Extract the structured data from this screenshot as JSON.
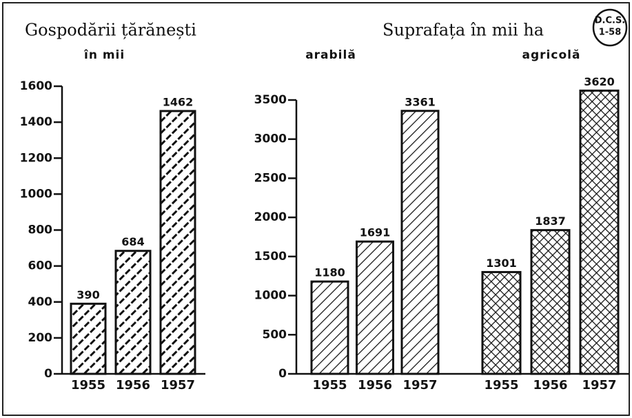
{
  "badge": [
    "D.C.S.",
    "1-58"
  ],
  "chart_data": [
    {
      "type": "bar",
      "title": "Gospodării țărănești",
      "subtitle": "în mii",
      "categories": [
        "1955",
        "1956",
        "1957"
      ],
      "values": [
        390,
        684,
        1462
      ],
      "color": "#111",
      "pattern": "dashed-hatch",
      "ylim": [
        0,
        1600
      ],
      "yticks": [
        0,
        200,
        400,
        600,
        800,
        1000,
        1200,
        1400,
        1600
      ]
    },
    {
      "type": "grouped-bar",
      "title": "Suprafața în mii ha",
      "categories": [
        "1955",
        "1956",
        "1957"
      ],
      "series": [
        {
          "name": "arabilă",
          "color": "#111",
          "pattern": "hatch",
          "values": [
            1180,
            1691,
            3361
          ]
        },
        {
          "name": "agricolă",
          "color": "#111",
          "pattern": "crosshatch",
          "values": [
            1301,
            1837,
            3620
          ]
        }
      ],
      "ylim": [
        0,
        3500
      ],
      "yticks": [
        0,
        500,
        1000,
        1500,
        2000,
        2500,
        3000,
        3500
      ]
    }
  ]
}
